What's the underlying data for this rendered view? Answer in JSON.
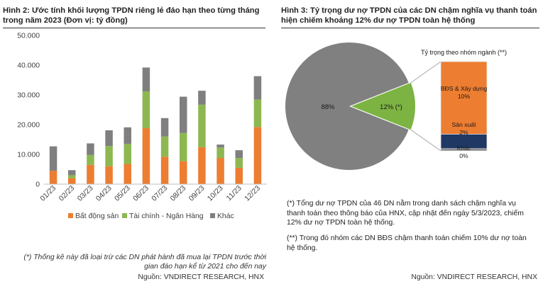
{
  "left_figure": {
    "title": "Hình 2: Ước tính khối lượng TPDN riêng lẻ đáo hạn theo từng tháng trong năm 2023 (Đơn vị: tỷ đồng)",
    "note": "(*) Thống kê này đã loại trừ các DN phát hành đã mua lại TPDN trước thời gian đáo hạn kể từ 2021 cho đến nay",
    "source": "Nguồn: VNDIRECT RESEARCH, HNX"
  },
  "right_figure": {
    "title": "Hình 3: Tỷ trọng dư nợ TPDN của các DN chậm nghĩa vụ thanh toán hiện chiếm khoảng 12% dư nợ TPDN toàn hệ thống",
    "note1": "(*) Tổng dư nợ TPDN của 46 DN nằm trong danh sách chậm nghĩa vụ thanh toán theo thông báo của HNX, cập nhật đến ngày 5/3/2023, chiếm 12% dư nợ TPDN toàn hệ thống.",
    "note2": "(**) Trong đó nhóm các DN BĐS chậm thanh toán chiếm 10% dư nợ toàn hệ thống.",
    "source": "Nguồn: VNDIRECT RESEARCH, HNX"
  },
  "chart_data": [
    {
      "type": "bar",
      "stacked": true,
      "categories": [
        "01/23",
        "02/23",
        "03/23",
        "04/23",
        "05/23",
        "06/23",
        "07/23",
        "08/23",
        "09/23",
        "10/23",
        "11/23",
        "12/23"
      ],
      "series": [
        {
          "name": "Bất động sản",
          "color": "#ED7D31",
          "values": [
            4500,
            2000,
            6500,
            6000,
            6800,
            18800,
            9200,
            7700,
            12400,
            8800,
            5500,
            19200
          ]
        },
        {
          "name": "Tài chính - Ngân Hàng",
          "color": "#8DB851",
          "values": [
            0,
            1000,
            3300,
            6800,
            6700,
            12400,
            6800,
            9500,
            14300,
            3500,
            3300,
            9200
          ]
        },
        {
          "name": "Khác",
          "color": "#7F7F7F",
          "values": [
            8200,
            1700,
            3900,
            5300,
            5600,
            8000,
            6200,
            12200,
            4700,
            1000,
            2600,
            7900
          ]
        }
      ],
      "ylim": [
        0,
        50000
      ],
      "yticks": [
        "0",
        "10.000",
        "20.000",
        "30.000",
        "40.000",
        "50.000"
      ],
      "ytick_values": [
        0,
        10000,
        20000,
        30000,
        40000,
        50000
      ],
      "grid": false,
      "legend": "bottom"
    },
    {
      "type": "pie",
      "slices": [
        {
          "label": "88%",
          "value": 88,
          "color": "#808080"
        },
        {
          "label": "12% (*)",
          "value": 12,
          "color": "#7CB342"
        }
      ],
      "breakdown": {
        "type": "stacked_bar",
        "title": "Tỷ trọng theo nhóm ngành (**)",
        "segments": [
          {
            "name": "BĐS & Xây dựng",
            "label": "10%",
            "value": 10,
            "color": "#ED7D31"
          },
          {
            "name": "Sản xuất",
            "label": "2%",
            "value": 2,
            "color": "#1F3864"
          },
          {
            "name": "Khác",
            "label": "0%",
            "value": 0.3,
            "color": "#7F7F7F"
          }
        ]
      }
    }
  ]
}
